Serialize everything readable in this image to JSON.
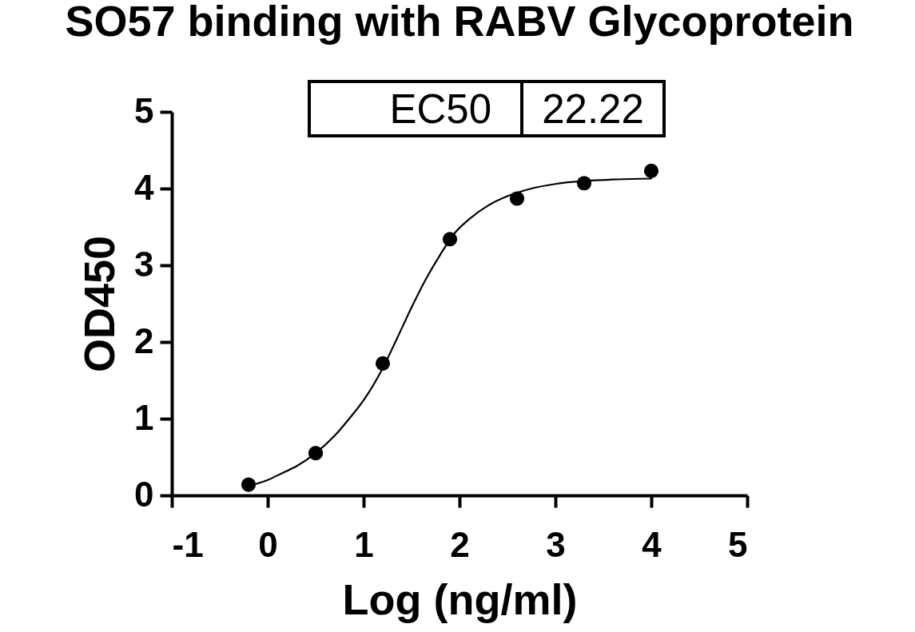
{
  "chart_data": {
    "type": "scatter",
    "title": "SO57 binding with RABV Glycoprotein",
    "xlabel": "Log (ng/ml)",
    "ylabel": "OD450",
    "annotations": [
      "EC50",
      "22.22"
    ],
    "xlim": [
      -1,
      5
    ],
    "ylim": [
      0,
      5
    ],
    "xticks": [
      -1,
      0,
      1,
      2,
      3,
      4,
      5
    ],
    "yticks": [
      0,
      1,
      2,
      3,
      4,
      5
    ],
    "series": [
      {
        "type": "line",
        "color": "#000000",
        "x": [
          -0.2,
          0.0,
          0.15,
          0.3,
          0.5,
          0.7,
          0.85,
          1.0,
          1.2,
          1.35,
          1.5,
          1.65,
          1.8,
          1.95,
          2.1,
          2.3,
          2.5,
          2.75,
          3.0,
          3.3,
          3.65,
          4.0
        ],
        "values": [
          0.12,
          0.2,
          0.29,
          0.38,
          0.55,
          0.78,
          1.0,
          1.24,
          1.66,
          2.05,
          2.45,
          2.82,
          3.14,
          3.42,
          3.6,
          3.78,
          3.9,
          4.0,
          4.06,
          4.1,
          4.12,
          4.13
        ]
      },
      {
        "color": "#000000",
        "marker": "circle",
        "x": [
          -0.2,
          0.5,
          1.2,
          1.9,
          2.6,
          3.3,
          4.0
        ],
        "values": [
          0.14,
          0.55,
          1.72,
          3.34,
          3.87,
          4.07,
          4.23
        ]
      }
    ]
  }
}
